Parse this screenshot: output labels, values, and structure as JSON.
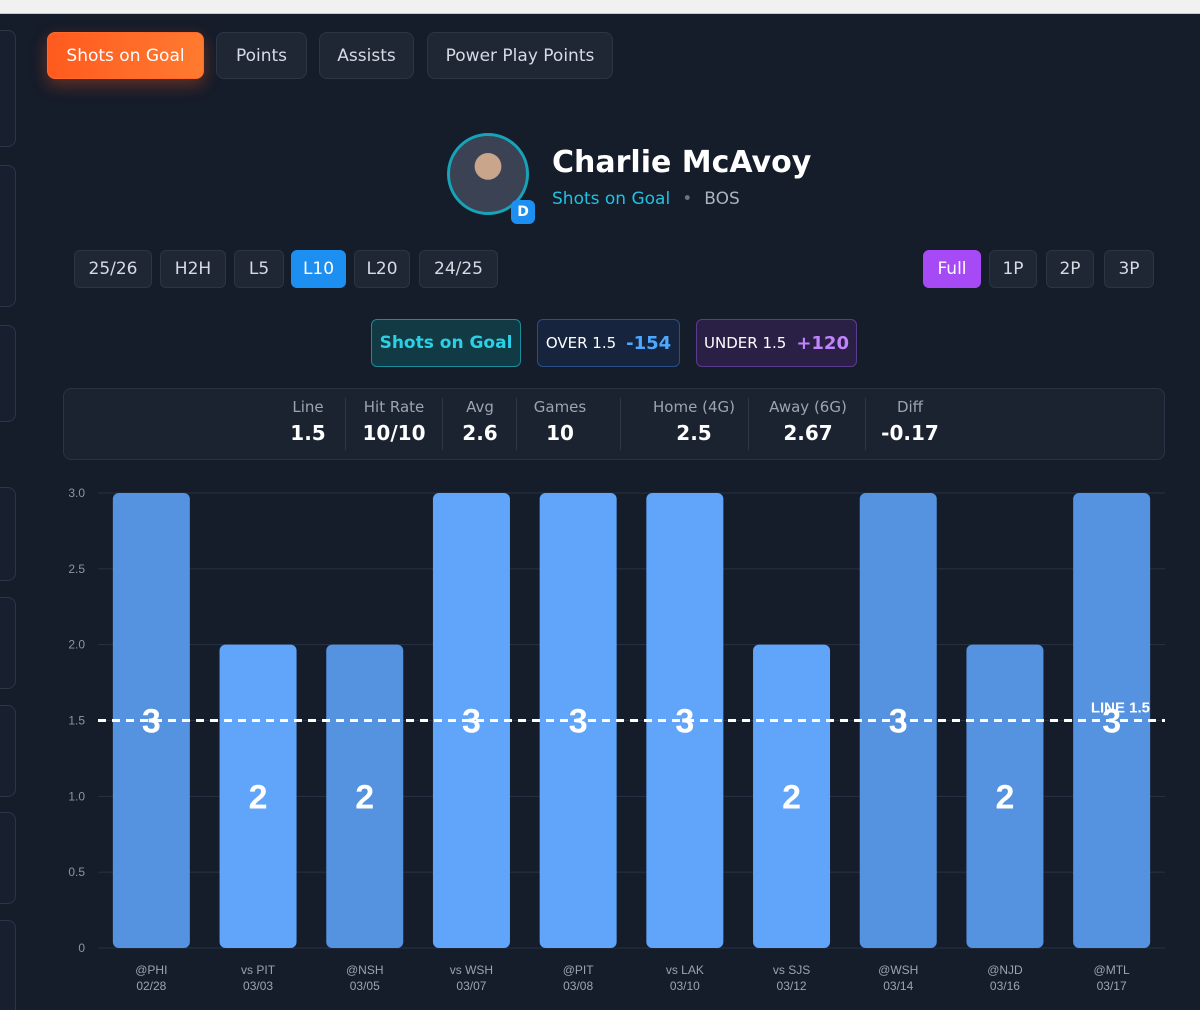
{
  "tabs": [
    "Shots on Goal",
    "Points",
    "Assists",
    "Power Play Points"
  ],
  "player": {
    "name": "Charlie McAvoy",
    "position": "D",
    "stat": "Shots on Goal",
    "separator": "•",
    "team": "BOS"
  },
  "range_filters": [
    "25/26",
    "H2H",
    "L5",
    "L10",
    "L20",
    "24/25"
  ],
  "period_filters": [
    "Full",
    "1P",
    "2P",
    "3P"
  ],
  "market": {
    "label": "Shots on Goal",
    "over_label": "OVER 1.5",
    "over_odds": "-154",
    "under_label": "UNDER 1.5",
    "under_odds": "+120"
  },
  "stats": [
    {
      "label": "Line",
      "value": 1.5
    },
    {
      "label": "Hit Rate",
      "value": "10/10"
    },
    {
      "label": "Avg",
      "value": 2.6
    },
    {
      "label": "Games",
      "value": 10
    },
    {
      "label": "Home (4G)",
      "value": 2.5
    },
    {
      "label": "Away (6G)",
      "value": 2.67
    },
    {
      "label": "Diff",
      "value": -0.17
    }
  ],
  "chart_data": {
    "type": "bar",
    "categories": [
      "@PHI",
      "vs PIT",
      "@NSH",
      "vs WSH",
      "@PIT",
      "vs LAK",
      "vs SJS",
      "@WSH",
      "@NJD",
      "@MTL"
    ],
    "dates": [
      "02/28",
      "03/03",
      "03/05",
      "03/07",
      "03/08",
      "03/10",
      "03/12",
      "03/14",
      "03/16",
      "03/17"
    ],
    "values": [
      3,
      2,
      2,
      3,
      3,
      3,
      2,
      3,
      2,
      3
    ],
    "colors": [
      "#5592df",
      "#60a5fa",
      "#5592df",
      "#60a5fa",
      "#60a5fa",
      "#60a5fa",
      "#60a5fa",
      "#5592df",
      "#5592df",
      "#5592df"
    ],
    "ylim": [
      0,
      3
    ],
    "yticks": [
      0,
      0.5,
      {
        "value": 1,
        "label": "1.0"
      },
      1.5,
      {
        "value": 2,
        "label": "2.0"
      },
      2.5,
      {
        "value": 3,
        "label": "3.0"
      }
    ],
    "grid": true,
    "line": {
      "value": 1.5,
      "label": "LINE 1.5"
    }
  }
}
